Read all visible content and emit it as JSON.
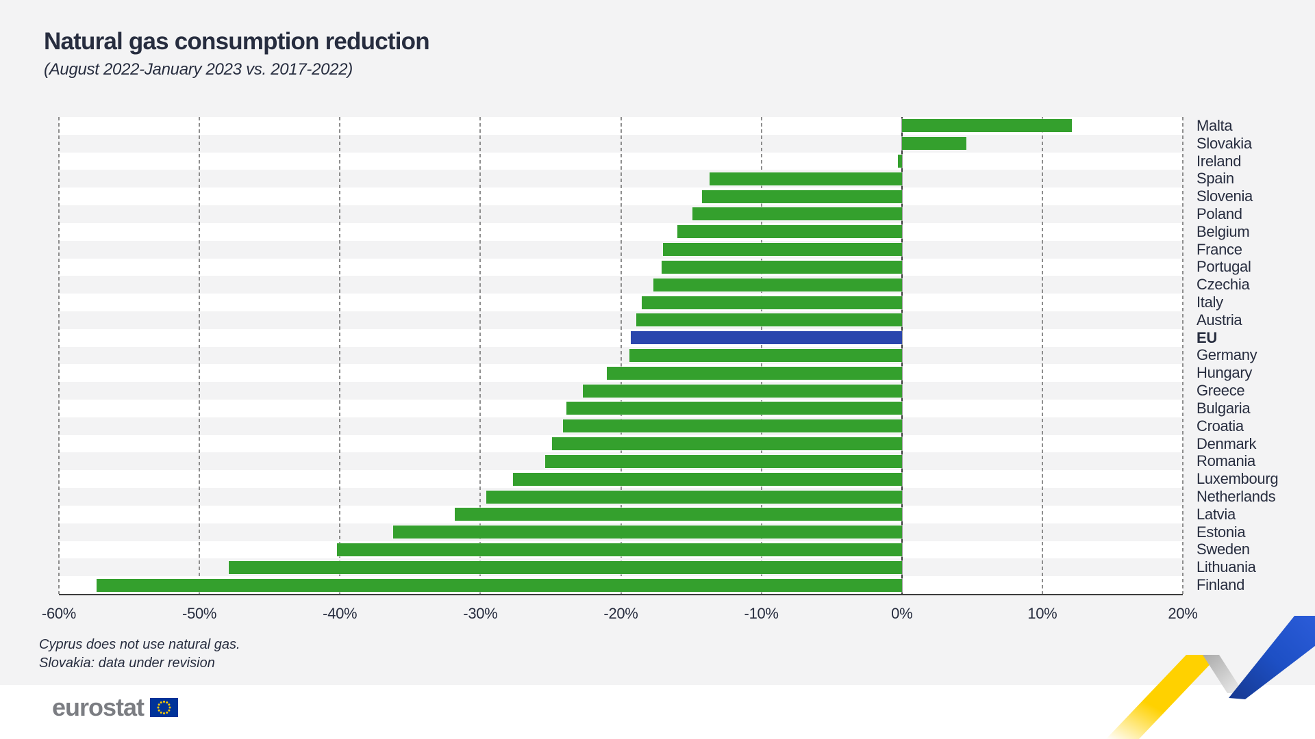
{
  "title": "Natural gas consumption reduction",
  "subtitle": "(August 2022-January 2023 vs. 2017-2022)",
  "footnotes": [
    "Cyprus does not use natural gas.",
    "Slovakia: data under revision"
  ],
  "logo": {
    "text": "eurostat"
  },
  "colors": {
    "background": "#f3f3f4",
    "stripe_white": "#ffffff",
    "bar_green": "#34a02d",
    "bar_blue_eu": "#2a46ad",
    "text_dark": "#272d3f",
    "grid_gray": "#8d8d8d",
    "axis_dark": "#3c3c3c",
    "logo_gray": "#7b7d82",
    "flag_blue": "#003399",
    "flag_star_yellow": "#ffcc00",
    "ribbon_yellow": "#ffd100",
    "ribbon_blue": "#1d4fc4"
  },
  "chart_data": {
    "type": "bar",
    "orientation": "horizontal",
    "unit": "%",
    "title": "Natural gas consumption reduction",
    "subtitle": "(August 2022-January 2023 vs. 2017-2022)",
    "xlim": [
      -60,
      20
    ],
    "grid": "dashed-vertical",
    "legend": "none",
    "highlight_category": "EU",
    "categories": [
      "Malta",
      "Slovakia",
      "Ireland",
      "Spain",
      "Slovenia",
      "Poland",
      "Belgium",
      "France",
      "Portugal",
      "Czechia",
      "Italy",
      "Austria",
      "EU",
      "Germany",
      "Hungary",
      "Greece",
      "Bulgaria",
      "Croatia",
      "Denmark",
      "Romania",
      "Luxembourg",
      "Netherlands",
      "Latvia",
      "Estonia",
      "Sweden",
      "Lithuania",
      "Finland"
    ],
    "values": [
      12.1,
      4.6,
      -0.3,
      -13.7,
      -14.2,
      -14.9,
      -16.0,
      -17.0,
      -17.1,
      -17.7,
      -18.5,
      -18.9,
      -19.3,
      -19.4,
      -21.0,
      -22.7,
      -23.9,
      -24.1,
      -24.9,
      -25.4,
      -27.7,
      -29.6,
      -31.8,
      -36.2,
      -40.2,
      -47.9,
      -57.3
    ],
    "x_ticks": [
      {
        "label": "-60%",
        "value": -60
      },
      {
        "label": "-50%",
        "value": -50
      },
      {
        "label": "-40%",
        "value": -40
      },
      {
        "label": "-30%",
        "value": -30
      },
      {
        "label": "-20%",
        "value": -20
      },
      {
        "label": "-10%",
        "value": -10
      },
      {
        "label": "0%",
        "value": 0
      },
      {
        "label": "10%",
        "value": 10
      },
      {
        "label": "20%",
        "value": 20
      }
    ]
  }
}
